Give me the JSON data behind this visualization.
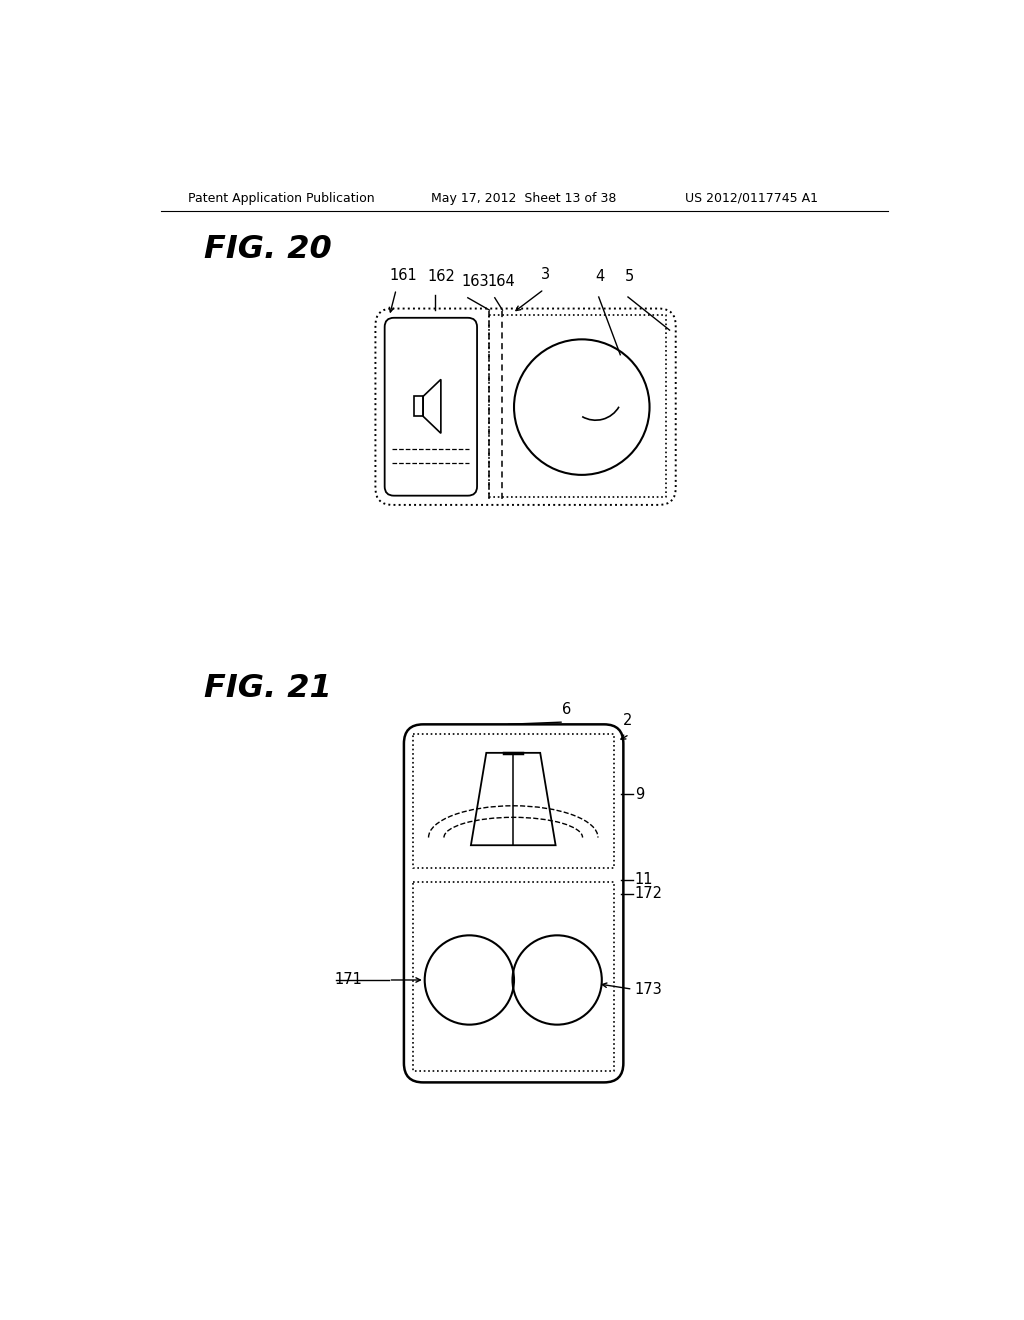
{
  "bg_color": "#ffffff",
  "header_left": "Patent Application Publication",
  "header_mid": "May 17, 2012  Sheet 13 of 38",
  "header_right": "US 2012/0117745 A1",
  "fig20_title": "FIG. 20",
  "fig21_title": "FIG. 21"
}
